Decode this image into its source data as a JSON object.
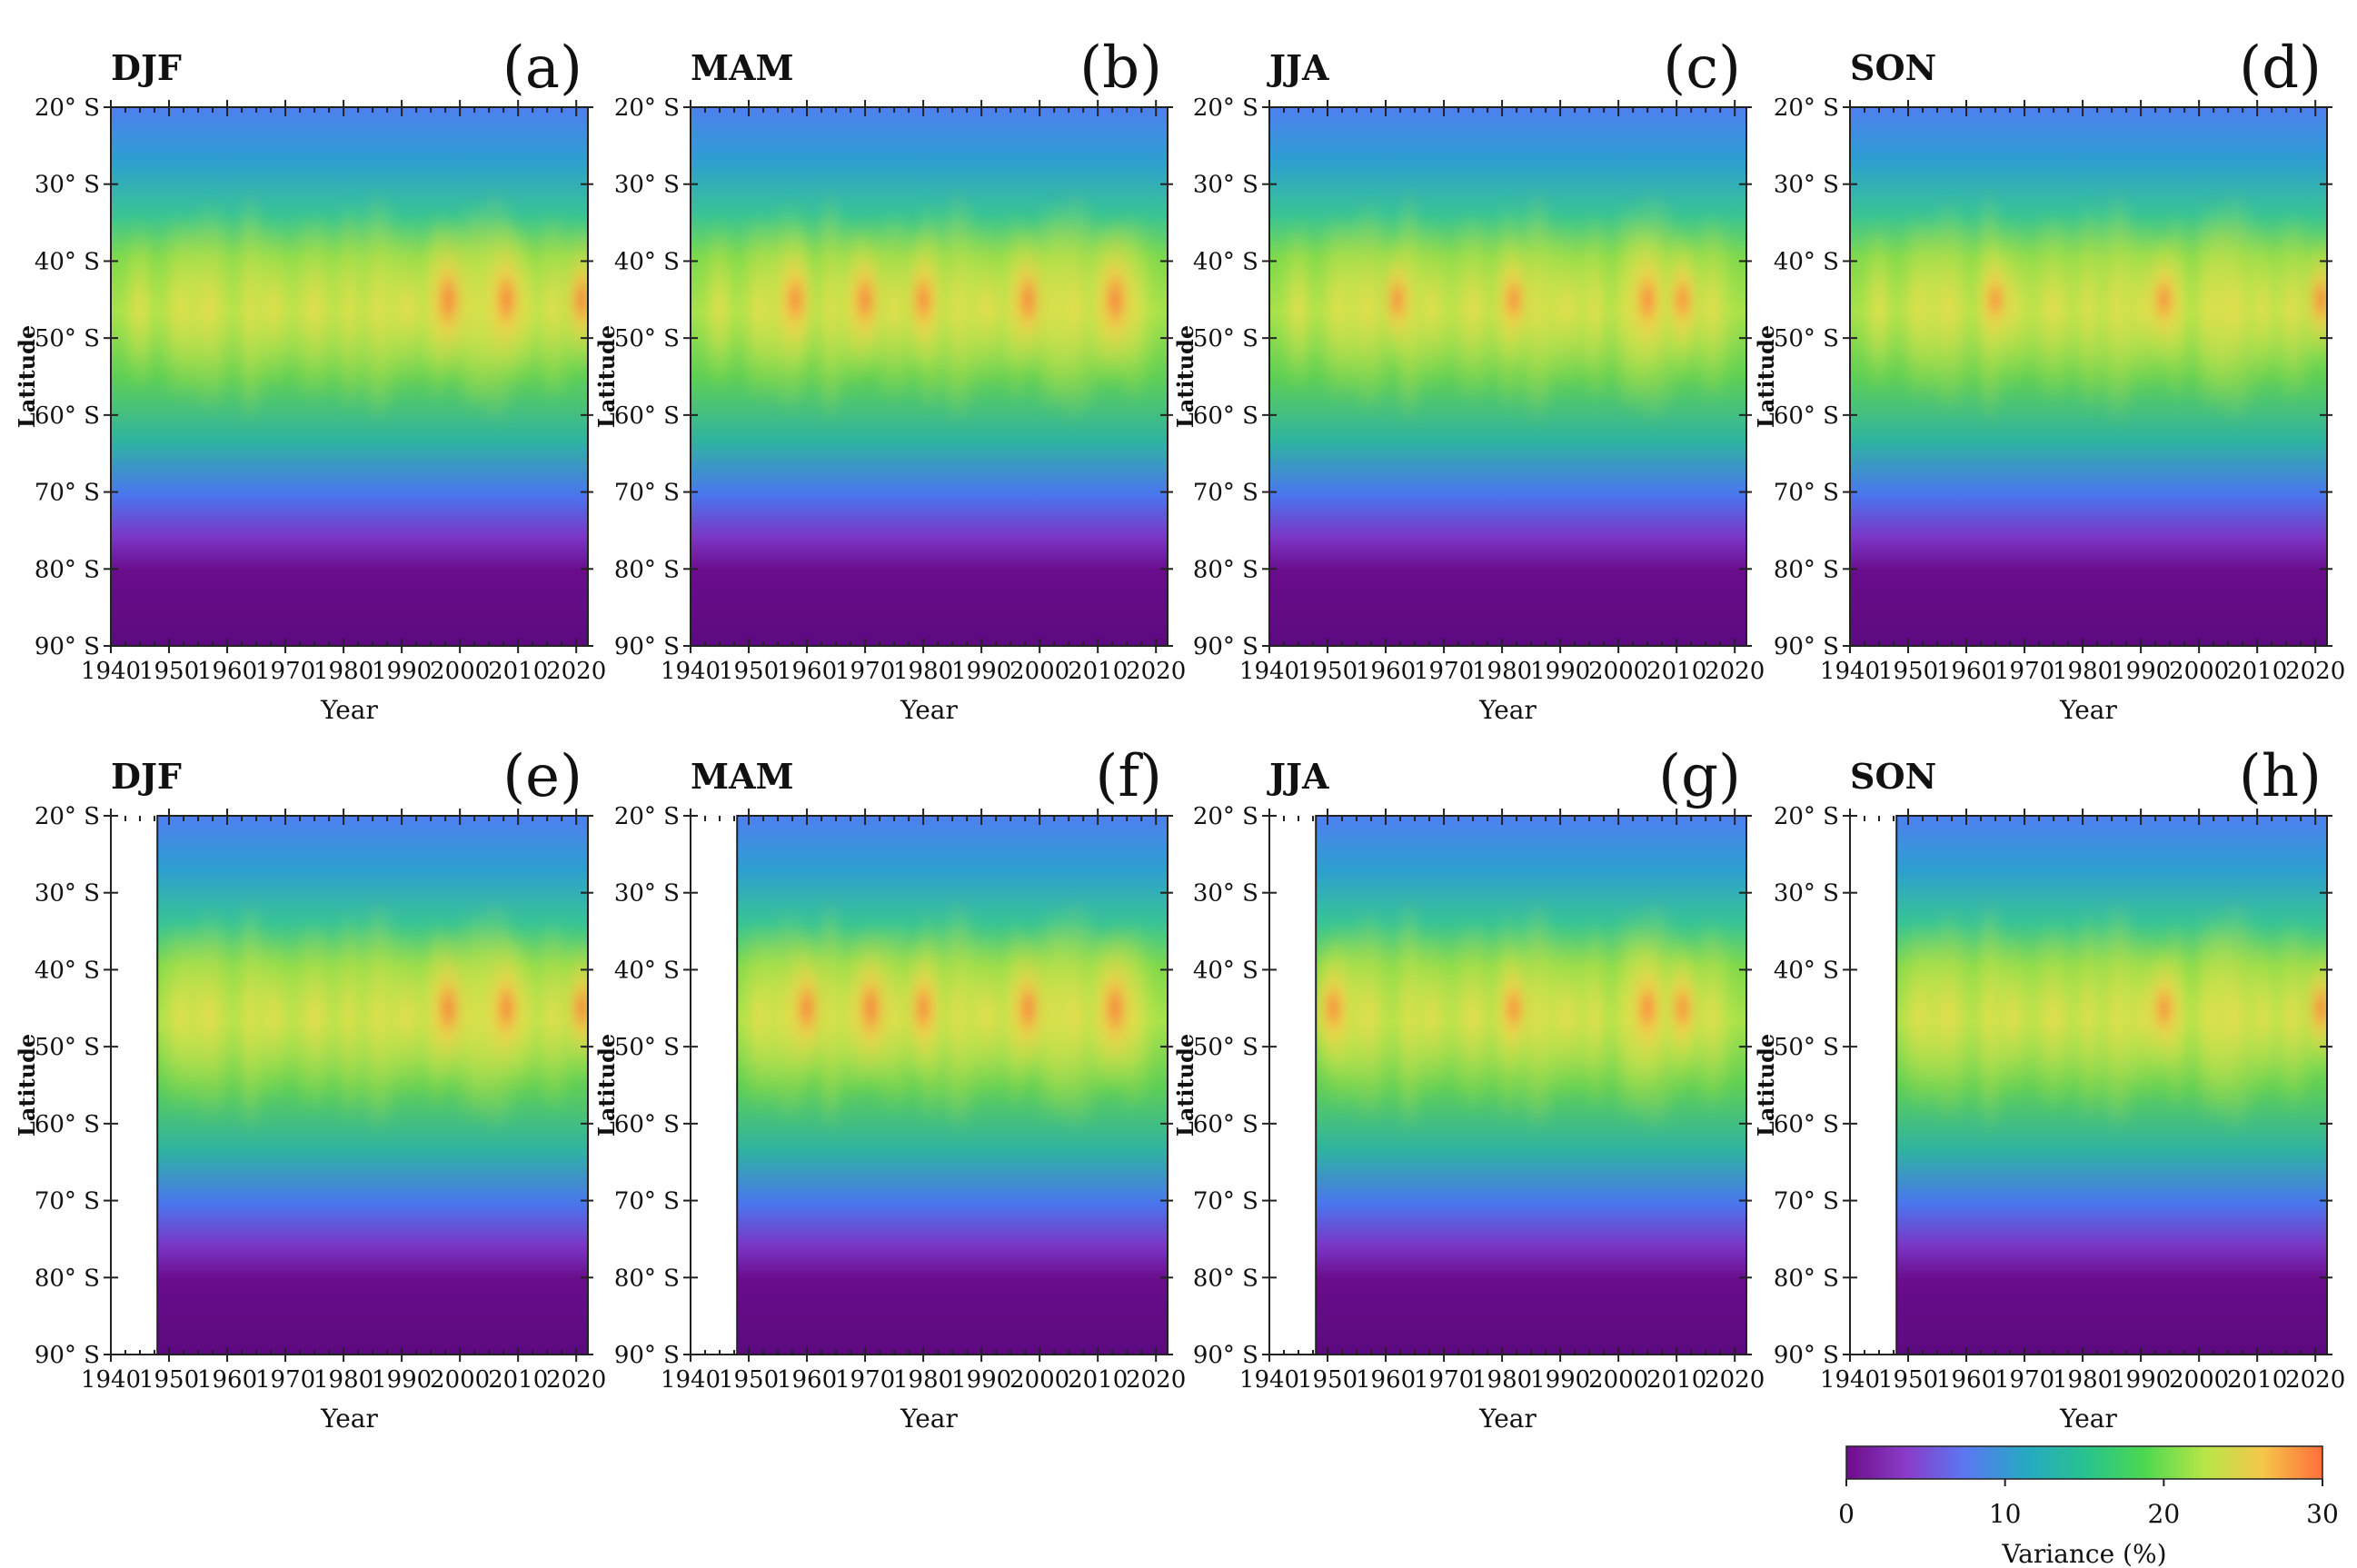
{
  "figure": {
    "ylabel": "Latitude",
    "xlabel": "Year",
    "colorbar": {
      "label": "Variance (%)",
      "ticks": [
        "0",
        "10",
        "20",
        "30"
      ],
      "range": [
        0,
        30
      ],
      "colors": [
        "#6f0c8a",
        "#8a3cc8",
        "#5a78f2",
        "#27a8c4",
        "#27c28f",
        "#4bd850",
        "#b6e648",
        "#f4c64a",
        "#ff6e3a"
      ]
    }
  },
  "chart_data": [
    {
      "type": "heatmap",
      "panel": "(a)",
      "title": "DJF",
      "x_start": 1940,
      "x_end": 2022,
      "data_start": 1940,
      "ylabel": "Latitude",
      "xlabel": "Year",
      "yticks": [
        "20° S",
        "30° S",
        "40° S",
        "50° S",
        "60° S",
        "70° S",
        "80° S",
        "90° S"
      ],
      "xticks": [
        "1940",
        "1950",
        "1960",
        "1970",
        "1980",
        "1990",
        "2000",
        "2010",
        "2020"
      ],
      "peak_latitude_band": "40° S–50° S",
      "max_variance": 27
    },
    {
      "type": "heatmap",
      "panel": "(b)",
      "title": "MAM",
      "x_start": 1940,
      "x_end": 2022,
      "data_start": 1940,
      "ylabel": "Latitude",
      "xlabel": "Year",
      "yticks": [
        "20° S",
        "30° S",
        "40° S",
        "50° S",
        "60° S",
        "70° S",
        "80° S",
        "90° S"
      ],
      "xticks": [
        "1940",
        "1950",
        "1960",
        "1970",
        "1980",
        "1990",
        "2000",
        "2010",
        "2020"
      ],
      "peak_latitude_band": "40° S–50° S",
      "max_variance": 28
    },
    {
      "type": "heatmap",
      "panel": "(c)",
      "title": "JJA",
      "x_start": 1940,
      "x_end": 2022,
      "data_start": 1940,
      "ylabel": "Latitude",
      "xlabel": "Year",
      "yticks": [
        "20° S",
        "30° S",
        "40° S",
        "50° S",
        "60° S",
        "70° S",
        "80° S",
        "90° S"
      ],
      "xticks": [
        "1940",
        "1950",
        "1960",
        "1970",
        "1980",
        "1990",
        "2000",
        "2010",
        "2020"
      ],
      "peak_latitude_band": "40° S–50° S",
      "max_variance": 24
    },
    {
      "type": "heatmap",
      "panel": "(d)",
      "title": "SON",
      "x_start": 1940,
      "x_end": 2022,
      "data_start": 1940,
      "ylabel": "Latitude",
      "xlabel": "Year",
      "yticks": [
        "20° S",
        "30° S",
        "40° S",
        "50° S",
        "60° S",
        "70° S",
        "80° S",
        "90° S"
      ],
      "xticks": [
        "1940",
        "1950",
        "1960",
        "1970",
        "1980",
        "1990",
        "2000",
        "2010",
        "2020"
      ],
      "peak_latitude_band": "40° S–50° S",
      "max_variance": 24
    },
    {
      "type": "heatmap",
      "panel": "(e)",
      "title": "DJF",
      "x_start": 1940,
      "x_end": 2022,
      "data_start": 1948,
      "ylabel": "Latitude",
      "xlabel": "Year",
      "yticks": [
        "20° S",
        "30° S",
        "40° S",
        "50° S",
        "60° S",
        "70° S",
        "80° S",
        "90° S"
      ],
      "xticks": [
        "1940",
        "1950",
        "1960",
        "1970",
        "1980",
        "1990",
        "2000",
        "2010",
        "2020"
      ],
      "peak_latitude_band": "40° S–50° S",
      "max_variance": 26
    },
    {
      "type": "heatmap",
      "panel": "(f)",
      "title": "MAM",
      "x_start": 1940,
      "x_end": 2022,
      "data_start": 1948,
      "ylabel": "Latitude",
      "xlabel": "Year",
      "yticks": [
        "20° S",
        "30° S",
        "40° S",
        "50° S",
        "60° S",
        "70° S",
        "80° S",
        "90° S"
      ],
      "xticks": [
        "1940",
        "1950",
        "1960",
        "1970",
        "1980",
        "1990",
        "2000",
        "2010",
        "2020"
      ],
      "peak_latitude_band": "40° S–50° S",
      "max_variance": 28
    },
    {
      "type": "heatmap",
      "panel": "(g)",
      "title": "JJA",
      "x_start": 1940,
      "x_end": 2022,
      "data_start": 1948,
      "ylabel": "Latitude",
      "xlabel": "Year",
      "yticks": [
        "20° S",
        "30° S",
        "40° S",
        "50° S",
        "60° S",
        "70° S",
        "80° S",
        "90° S"
      ],
      "xticks": [
        "1940",
        "1950",
        "1960",
        "1970",
        "1980",
        "1990",
        "2000",
        "2010",
        "2020"
      ],
      "peak_latitude_band": "40° S–50° S",
      "max_variance": 24
    },
    {
      "type": "heatmap",
      "panel": "(h)",
      "title": "SON",
      "x_start": 1940,
      "x_end": 2022,
      "data_start": 1948,
      "ylabel": "Latitude",
      "xlabel": "Year",
      "yticks": [
        "20° S",
        "30° S",
        "40° S",
        "50° S",
        "60° S",
        "70° S",
        "80° S",
        "90° S"
      ],
      "xticks": [
        "1940",
        "1950",
        "1960",
        "1970",
        "1980",
        "1990",
        "2000",
        "2010",
        "2020"
      ],
      "peak_latitude_band": "40° S–50° S",
      "max_variance": 24
    }
  ]
}
